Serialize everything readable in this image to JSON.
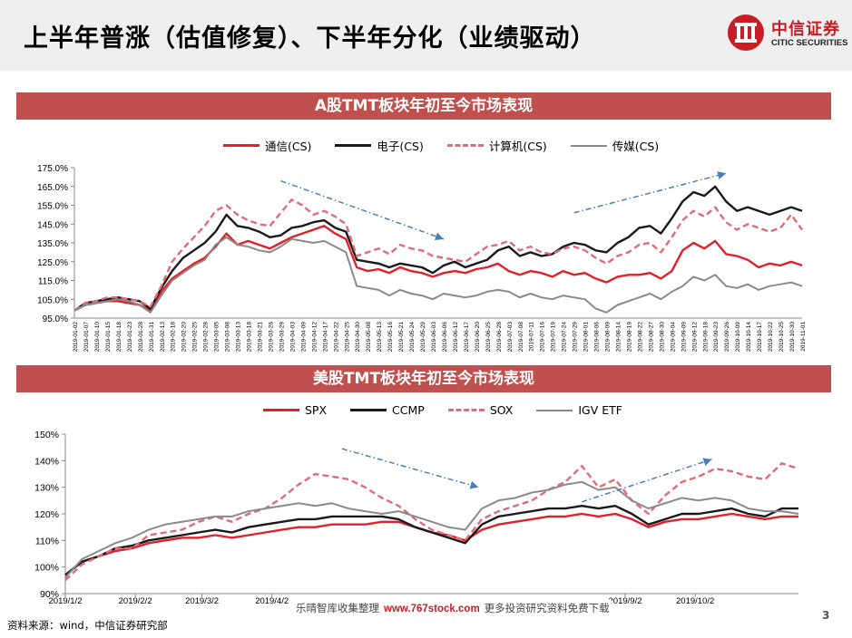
{
  "page": {
    "title": "上半年普涨（估值修复）、下半年分化（业绩驱动）",
    "logo_cn": "中信证券",
    "logo_en": "CITIC SECURITIES",
    "watermark_left": "乐晴智库收集整理",
    "watermark_site": "www.767stock.com",
    "watermark_right": "更多投资研究资料免费下载",
    "source": "资料来源：wind，中信证券研究部",
    "page_number": "3"
  },
  "colors": {
    "brand_red": "#c81d25",
    "banner_red": "#c0504d",
    "series_red": "#e0202a",
    "series_black": "#1a1a1a",
    "series_pink": "#e06b7a",
    "series_gray": "#8a8a8a",
    "arrow_blue": "#4a7ebb"
  },
  "chart_data": [
    {
      "type": "line",
      "title": "A股TMT板块年初至今市场表现",
      "ylim": [
        0.95,
        1.75
      ],
      "yticks": [
        "95.0%",
        "105.0%",
        "115.0%",
        "125.0%",
        "135.0%",
        "145.0%",
        "155.0%",
        "165.0%",
        "175.0%"
      ],
      "x": [
        "2019-01-02",
        "2019-01-07",
        "2019-01-10",
        "2019-01-15",
        "2019-01-18",
        "2019-01-23",
        "2019-01-28",
        "2019-01-31",
        "2019-02-13",
        "2019-02-18",
        "2019-02-21",
        "2019-02-26",
        "2019-03-01",
        "2019-03-06",
        "2019-03-11",
        "2019-03-14",
        "2019-03-19",
        "2019-03-22",
        "2019-03-27",
        "2019-04-01",
        "2019-04-04",
        "2019-04-10",
        "2019-04-15",
        "2019-04-18",
        "2019-04-23",
        "2019-04-26",
        "2019-05-06",
        "2019-05-09",
        "2019-05-14",
        "2019-05-17",
        "2019-05-22",
        "2019-05-27",
        "2019-05-30",
        "2019-06-04",
        "2019-06-10",
        "2019-06-13",
        "2019-06-18",
        "2019-06-21",
        "2019-06-26",
        "2019-07-01",
        "2019-07-04",
        "2019-07-09",
        "2019-07-12",
        "2019-07-17",
        "2019-07-22",
        "2019-07-25",
        "2019-07-30",
        "2019-08-02",
        "2019-08-07",
        "2019-08-12",
        "2019-08-15",
        "2019-08-20",
        "2019-08-23",
        "2019-08-28",
        "2019-09-02",
        "2019-09-05",
        "2019-09-10",
        "2019-09-16",
        "2019-09-19",
        "2019-09-24",
        "2019-09-27",
        "2019-10-10",
        "2019-10-15",
        "2019-10-18",
        "2019-10-23",
        "2019-10-28",
        "2019-10-31",
        "2019-11-05"
      ],
      "xtick_labels": [
        "2019-01-02",
        "2019-01-07",
        "2019-01-10",
        "2019-01-15",
        "2019-01-18",
        "2019-01-23",
        "2019-01-28",
        "2019-01-31",
        "2019-02-13",
        "2019-02-18",
        "2019-02-20",
        "2019-02-25",
        "2019-02-28",
        "2019-03-05",
        "2019-03-08",
        "2019-03-13",
        "2019-03-18",
        "2019-03-21",
        "2019-03-26",
        "2019-03-29",
        "2019-04-03",
        "2019-04-09",
        "2019-04-12",
        "2019-04-17",
        "2019-04-22",
        "2019-04-25",
        "2019-04-30",
        "2019-05-08",
        "2019-05-13",
        "2019-05-16",
        "2019-05-21",
        "2019-05-24",
        "2019-05-29",
        "2019-06-03",
        "2019-06-06",
        "2019-06-12",
        "2019-06-17",
        "2019-06-20",
        "2019-06-25",
        "2019-06-28",
        "2019-07-03",
        "2019-07-08",
        "2019-07-11",
        "2019-07-16",
        "2019-07-19",
        "2019-07-24",
        "2019-07-29",
        "2019-08-01",
        "2019-08-06",
        "2019-08-09",
        "2019-08-14",
        "2019-08-19",
        "2019-08-22",
        "2019-08-27",
        "2019-08-30",
        "2019-09-04",
        "2019-09-09",
        "2019-09-12",
        "2019-09-18",
        "2019-09-23",
        "2019-09-26",
        "2019-10-09",
        "2019-10-14",
        "2019-10-17",
        "2019-10-22",
        "2019-10-25",
        "2019-10-30",
        "2019-11-01"
      ],
      "series": [
        {
          "name": "通信(CS)",
          "color": "#e0202a",
          "dash": "",
          "values": [
            0.99,
            1.02,
            1.03,
            1.04,
            1.04,
            1.03,
            1.02,
            0.99,
            1.09,
            1.16,
            1.2,
            1.24,
            1.27,
            1.33,
            1.4,
            1.34,
            1.36,
            1.34,
            1.32,
            1.35,
            1.38,
            1.4,
            1.42,
            1.44,
            1.4,
            1.37,
            1.22,
            1.2,
            1.21,
            1.19,
            1.22,
            1.2,
            1.19,
            1.17,
            1.19,
            1.2,
            1.19,
            1.21,
            1.22,
            1.24,
            1.2,
            1.18,
            1.2,
            1.19,
            1.17,
            1.2,
            1.18,
            1.19,
            1.16,
            1.14,
            1.17,
            1.18,
            1.18,
            1.19,
            1.16,
            1.2,
            1.31,
            1.35,
            1.32,
            1.36,
            1.29,
            1.28,
            1.26,
            1.22,
            1.24,
            1.23,
            1.25,
            1.23
          ]
        },
        {
          "name": "电子(CS)",
          "color": "#1a1a1a",
          "dash": "",
          "values": [
            0.99,
            1.03,
            1.04,
            1.05,
            1.06,
            1.05,
            1.04,
            1.0,
            1.11,
            1.2,
            1.27,
            1.31,
            1.35,
            1.41,
            1.5,
            1.44,
            1.43,
            1.41,
            1.38,
            1.39,
            1.43,
            1.44,
            1.46,
            1.47,
            1.43,
            1.41,
            1.26,
            1.25,
            1.24,
            1.22,
            1.24,
            1.23,
            1.22,
            1.19,
            1.23,
            1.25,
            1.22,
            1.24,
            1.26,
            1.31,
            1.33,
            1.28,
            1.3,
            1.28,
            1.29,
            1.33,
            1.35,
            1.34,
            1.31,
            1.3,
            1.35,
            1.38,
            1.43,
            1.44,
            1.4,
            1.48,
            1.57,
            1.62,
            1.6,
            1.65,
            1.57,
            1.52,
            1.54,
            1.52,
            1.5,
            1.52,
            1.54,
            1.52
          ]
        },
        {
          "name": "计算机(CS)",
          "color": "#e06b7a",
          "dash": "7,4",
          "values": [
            0.99,
            1.03,
            1.04,
            1.06,
            1.06,
            1.05,
            1.04,
            1.01,
            1.12,
            1.25,
            1.32,
            1.38,
            1.44,
            1.52,
            1.55,
            1.5,
            1.47,
            1.45,
            1.44,
            1.51,
            1.58,
            1.55,
            1.5,
            1.52,
            1.49,
            1.45,
            1.28,
            1.3,
            1.32,
            1.29,
            1.34,
            1.32,
            1.31,
            1.28,
            1.27,
            1.26,
            1.25,
            1.29,
            1.33,
            1.34,
            1.36,
            1.31,
            1.33,
            1.3,
            1.29,
            1.32,
            1.33,
            1.31,
            1.27,
            1.24,
            1.28,
            1.3,
            1.34,
            1.35,
            1.3,
            1.38,
            1.47,
            1.52,
            1.49,
            1.54,
            1.46,
            1.42,
            1.45,
            1.43,
            1.41,
            1.43,
            1.5,
            1.42
          ]
        },
        {
          "name": "传媒(CS)",
          "color": "#8a8a8a",
          "dash": "",
          "values": [
            0.99,
            1.02,
            1.03,
            1.04,
            1.05,
            1.04,
            1.02,
            0.98,
            1.07,
            1.15,
            1.19,
            1.23,
            1.26,
            1.34,
            1.38,
            1.34,
            1.33,
            1.31,
            1.3,
            1.33,
            1.37,
            1.36,
            1.35,
            1.36,
            1.33,
            1.3,
            1.12,
            1.11,
            1.1,
            1.07,
            1.1,
            1.08,
            1.07,
            1.05,
            1.08,
            1.07,
            1.06,
            1.07,
            1.09,
            1.1,
            1.09,
            1.06,
            1.08,
            1.06,
            1.05,
            1.07,
            1.06,
            1.05,
            1.0,
            0.98,
            1.02,
            1.04,
            1.06,
            1.08,
            1.05,
            1.09,
            1.12,
            1.17,
            1.15,
            1.18,
            1.12,
            1.11,
            1.13,
            1.1,
            1.12,
            1.13,
            1.14,
            1.12
          ]
        }
      ],
      "annotations": [
        {
          "type": "arrow",
          "from": [
            "2019-04-01",
            1.68
          ],
          "to": [
            "2019-06-10",
            1.37
          ]
        },
        {
          "type": "arrow",
          "from": [
            "2019-07-30",
            1.51
          ],
          "to": [
            "2019-09-27",
            1.72
          ]
        }
      ]
    },
    {
      "type": "line",
      "title": "美股TMT板块年初至今市场表现",
      "ylim": [
        0.9,
        1.5
      ],
      "yticks": [
        "90%",
        "100%",
        "110%",
        "120%",
        "130%",
        "140%",
        "150%"
      ],
      "x": [
        0,
        5,
        10,
        15,
        20,
        25,
        30,
        35,
        40,
        45,
        50,
        55,
        60,
        65,
        70,
        75,
        80,
        85,
        90,
        95,
        100,
        105,
        110,
        115,
        120,
        125,
        130,
        135,
        140,
        145,
        150,
        155,
        160,
        165,
        170,
        175,
        180,
        185,
        190,
        195,
        200,
        205,
        210,
        215,
        220
      ],
      "xtick_labels": [
        {
          "label": "2019/1/2",
          "pos": 0
        },
        {
          "label": "2019/2/2",
          "pos": 21
        },
        {
          "label": "2019/3/2",
          "pos": 41
        },
        {
          "label": "2019/4/2",
          "pos": 62
        },
        {
          "label": "2019/9/2",
          "pos": 168
        },
        {
          "label": "2019/10/2",
          "pos": 189
        }
      ],
      "series": [
        {
          "name": "SPX",
          "color": "#e0202a",
          "dash": "",
          "values": [
            0.97,
            1.02,
            1.04,
            1.06,
            1.07,
            1.09,
            1.1,
            1.11,
            1.11,
            1.12,
            1.11,
            1.12,
            1.13,
            1.14,
            1.15,
            1.15,
            1.16,
            1.16,
            1.16,
            1.17,
            1.17,
            1.15,
            1.13,
            1.12,
            1.1,
            1.14,
            1.16,
            1.17,
            1.18,
            1.19,
            1.19,
            1.2,
            1.19,
            1.2,
            1.18,
            1.15,
            1.17,
            1.18,
            1.18,
            1.19,
            1.2,
            1.19,
            1.18,
            1.19,
            1.19
          ]
        },
        {
          "name": "CCMP",
          "color": "#1a1a1a",
          "dash": "",
          "values": [
            0.97,
            1.02,
            1.04,
            1.07,
            1.08,
            1.1,
            1.11,
            1.12,
            1.13,
            1.14,
            1.13,
            1.15,
            1.16,
            1.17,
            1.18,
            1.18,
            1.19,
            1.19,
            1.19,
            1.19,
            1.18,
            1.15,
            1.13,
            1.11,
            1.09,
            1.16,
            1.19,
            1.2,
            1.21,
            1.22,
            1.22,
            1.23,
            1.22,
            1.23,
            1.2,
            1.16,
            1.18,
            1.2,
            1.2,
            1.21,
            1.22,
            1.2,
            1.19,
            1.22,
            1.22
          ]
        },
        {
          "name": "SOX",
          "color": "#e06b7a",
          "dash": "7,4",
          "values": [
            0.95,
            1.01,
            1.04,
            1.07,
            1.07,
            1.12,
            1.13,
            1.14,
            1.17,
            1.19,
            1.17,
            1.2,
            1.22,
            1.26,
            1.31,
            1.35,
            1.34,
            1.33,
            1.3,
            1.26,
            1.23,
            1.18,
            1.14,
            1.12,
            1.1,
            1.18,
            1.21,
            1.23,
            1.25,
            1.29,
            1.32,
            1.38,
            1.3,
            1.33,
            1.25,
            1.2,
            1.27,
            1.32,
            1.34,
            1.37,
            1.36,
            1.34,
            1.33,
            1.39,
            1.37
          ]
        },
        {
          "name": "IGV ETF",
          "color": "#8a8a8a",
          "dash": "",
          "values": [
            0.96,
            1.03,
            1.06,
            1.09,
            1.11,
            1.14,
            1.16,
            1.17,
            1.18,
            1.19,
            1.19,
            1.21,
            1.22,
            1.23,
            1.24,
            1.23,
            1.24,
            1.22,
            1.21,
            1.2,
            1.21,
            1.19,
            1.17,
            1.15,
            1.14,
            1.22,
            1.25,
            1.26,
            1.28,
            1.29,
            1.31,
            1.32,
            1.29,
            1.3,
            1.25,
            1.22,
            1.24,
            1.26,
            1.25,
            1.26,
            1.25,
            1.22,
            1.21,
            1.21,
            1.2
          ]
        }
      ],
      "annotations": [
        {
          "type": "arrow",
          "from": [
            83,
            1.445
          ],
          "to": [
            124,
            1.3
          ]
        },
        {
          "type": "arrow",
          "from": [
            155,
            1.245
          ],
          "to": [
            194,
            1.405
          ]
        }
      ]
    }
  ]
}
